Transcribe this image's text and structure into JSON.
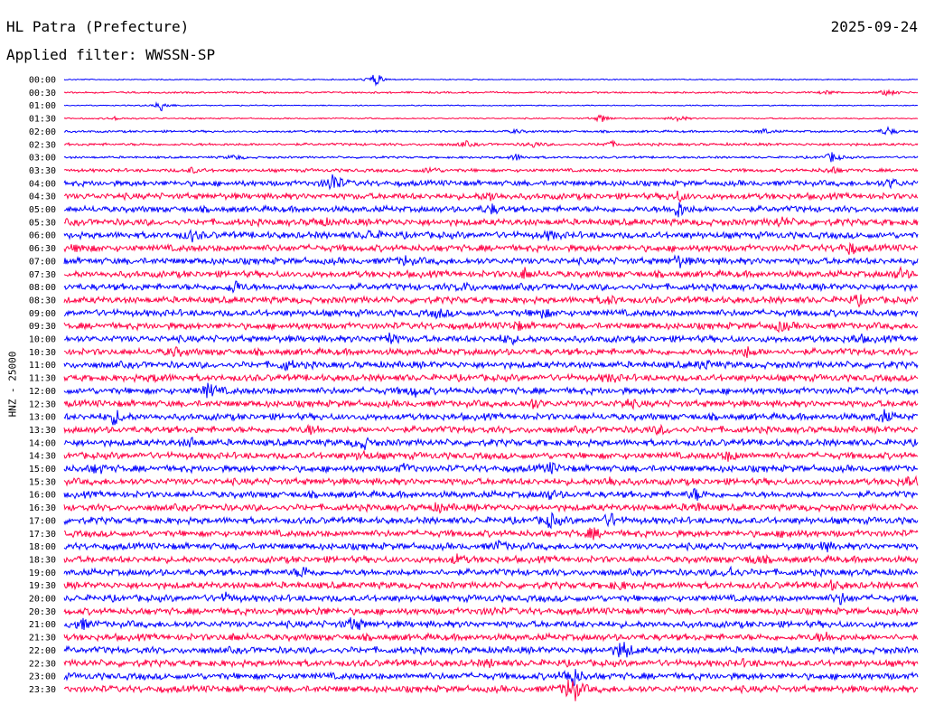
{
  "header": {
    "station": "HL Patra (Prefecture)",
    "date": "2025-09-24",
    "filter": "Applied filter: WWSSN-SP"
  },
  "channel_label": "HNZ - 25000",
  "colors": {
    "even": "#0000ff",
    "odd": "#ff0044"
  },
  "chart_data": {
    "type": "line",
    "rows": [
      {
        "label": "00:00",
        "noise": 0.5,
        "events": [
          {
            "x": 0.365,
            "amp": 8
          }
        ]
      },
      {
        "label": "00:30",
        "noise": 0.8,
        "events": [
          {
            "x": 0.965,
            "amp": 4
          },
          {
            "x": 0.895,
            "amp": 2
          }
        ]
      },
      {
        "label": "01:00",
        "noise": 0.5,
        "events": [
          {
            "x": 0.115,
            "amp": 7
          }
        ]
      },
      {
        "label": "01:30",
        "noise": 0.6,
        "events": [
          {
            "x": 0.63,
            "amp": 5
          },
          {
            "x": 0.72,
            "amp": 4
          },
          {
            "x": 0.06,
            "amp": 2
          }
        ]
      },
      {
        "label": "02:00",
        "noise": 1.0,
        "events": [
          {
            "x": 0.53,
            "amp": 2
          },
          {
            "x": 0.82,
            "amp": 3
          },
          {
            "x": 0.965,
            "amp": 5
          }
        ]
      },
      {
        "label": "02:30",
        "noise": 1.2,
        "events": [
          {
            "x": 0.47,
            "amp": 3
          },
          {
            "x": 0.55,
            "amp": 3
          },
          {
            "x": 0.64,
            "amp": 3
          }
        ]
      },
      {
        "label": "03:00",
        "noise": 1.0,
        "events": [
          {
            "x": 0.2,
            "amp": 3
          },
          {
            "x": 0.53,
            "amp": 4
          },
          {
            "x": 0.9,
            "amp": 6
          }
        ]
      },
      {
        "label": "03:30",
        "noise": 1.5,
        "events": [
          {
            "x": 0.43,
            "amp": 4
          },
          {
            "x": 0.15,
            "amp": 3
          },
          {
            "x": 0.9,
            "amp": 4
          }
        ]
      },
      {
        "label": "04:00",
        "noise": 2.5,
        "events": [
          {
            "x": 0.315,
            "amp": 12
          },
          {
            "x": 0.97,
            "amp": 5
          }
        ]
      },
      {
        "label": "04:30",
        "noise": 2.8,
        "events": [
          {
            "x": 0.5,
            "amp": 5
          },
          {
            "x": 0.72,
            "amp": 5
          }
        ]
      },
      {
        "label": "05:00",
        "noise": 2.8,
        "events": [
          {
            "x": 0.72,
            "amp": 9
          },
          {
            "x": 0.5,
            "amp": 5
          }
        ]
      },
      {
        "label": "05:30",
        "noise": 3.0,
        "events": [
          {
            "x": 0.84,
            "amp": 5
          },
          {
            "x": 0.3,
            "amp": 4
          }
        ]
      },
      {
        "label": "06:00",
        "noise": 3.0,
        "events": [
          {
            "x": 0.15,
            "amp": 5
          },
          {
            "x": 0.36,
            "amp": 5
          },
          {
            "x": 0.57,
            "amp": 4
          }
        ]
      },
      {
        "label": "06:30",
        "noise": 3.0,
        "events": [
          {
            "x": 0.92,
            "amp": 6
          },
          {
            "x": 0.02,
            "amp": 4
          }
        ]
      },
      {
        "label": "07:00",
        "noise": 3.0,
        "events": [
          {
            "x": 0.72,
            "amp": 6
          },
          {
            "x": 0.4,
            "amp": 4
          }
        ]
      },
      {
        "label": "07:30",
        "noise": 3.0,
        "events": [
          {
            "x": 0.54,
            "amp": 6
          },
          {
            "x": 0.98,
            "amp": 5
          }
        ]
      },
      {
        "label": "08:00",
        "noise": 3.0,
        "events": [
          {
            "x": 0.2,
            "amp": 7
          },
          {
            "x": 0.47,
            "amp": 4
          }
        ]
      },
      {
        "label": "08:30",
        "noise": 3.0,
        "events": [
          {
            "x": 0.64,
            "amp": 4
          },
          {
            "x": 0.93,
            "amp": 4
          }
        ]
      },
      {
        "label": "09:00",
        "noise": 3.0,
        "events": [
          {
            "x": 0.56,
            "amp": 5
          },
          {
            "x": 0.44,
            "amp": 4
          }
        ]
      },
      {
        "label": "09:30",
        "noise": 3.0,
        "events": [
          {
            "x": 0.84,
            "amp": 5
          },
          {
            "x": 0.53,
            "amp": 4
          }
        ]
      },
      {
        "label": "10:00",
        "noise": 3.0,
        "events": [
          {
            "x": 0.38,
            "amp": 6
          },
          {
            "x": 0.52,
            "amp": 5
          },
          {
            "x": 0.93,
            "amp": 4
          }
        ]
      },
      {
        "label": "10:30",
        "noise": 3.0,
        "events": [
          {
            "x": 0.8,
            "amp": 5
          },
          {
            "x": 0.13,
            "amp": 4
          }
        ]
      },
      {
        "label": "11:00",
        "noise": 3.0,
        "events": [
          {
            "x": 0.26,
            "amp": 5
          },
          {
            "x": 0.75,
            "amp": 5
          }
        ]
      },
      {
        "label": "11:30",
        "noise": 3.0,
        "events": [
          {
            "x": 0.11,
            "amp": 4
          },
          {
            "x": 0.64,
            "amp": 4
          }
        ]
      },
      {
        "label": "12:00",
        "noise": 3.0,
        "events": [
          {
            "x": 0.17,
            "amp": 8
          },
          {
            "x": 0.41,
            "amp": 5
          }
        ]
      },
      {
        "label": "12:30",
        "noise": 3.0,
        "events": [
          {
            "x": 0.55,
            "amp": 5
          },
          {
            "x": 0.66,
            "amp": 4
          }
        ]
      },
      {
        "label": "13:00",
        "noise": 3.0,
        "events": [
          {
            "x": 0.06,
            "amp": 8
          },
          {
            "x": 0.96,
            "amp": 6
          }
        ]
      },
      {
        "label": "13:30",
        "noise": 3.0,
        "events": [
          {
            "x": 0.29,
            "amp": 4
          },
          {
            "x": 0.7,
            "amp": 4
          }
        ]
      },
      {
        "label": "14:00",
        "noise": 3.0,
        "events": [
          {
            "x": 0.35,
            "amp": 6
          },
          {
            "x": 0.15,
            "amp": 4
          }
        ]
      },
      {
        "label": "14:30",
        "noise": 3.0,
        "events": [
          {
            "x": 0.78,
            "amp": 5
          },
          {
            "x": 0.35,
            "amp": 4
          }
        ]
      },
      {
        "label": "15:00",
        "noise": 3.0,
        "events": [
          {
            "x": 0.04,
            "amp": 5
          },
          {
            "x": 0.57,
            "amp": 5
          },
          {
            "x": 0.4,
            "amp": 4
          }
        ]
      },
      {
        "label": "15:30",
        "noise": 3.0,
        "events": [
          {
            "x": 0.64,
            "amp": 5
          },
          {
            "x": 0.99,
            "amp": 5
          }
        ]
      },
      {
        "label": "16:00",
        "noise": 3.0,
        "events": [
          {
            "x": 0.74,
            "amp": 6
          },
          {
            "x": 0.57,
            "amp": 4
          }
        ]
      },
      {
        "label": "16:30",
        "noise": 3.0,
        "events": [
          {
            "x": 0.44,
            "amp": 4
          },
          {
            "x": 0.74,
            "amp": 4
          }
        ]
      },
      {
        "label": "17:00",
        "noise": 3.0,
        "events": [
          {
            "x": 0.57,
            "amp": 7
          },
          {
            "x": 0.64,
            "amp": 7
          }
        ]
      },
      {
        "label": "17:30",
        "noise": 3.0,
        "events": [
          {
            "x": 0.62,
            "amp": 5
          },
          {
            "x": 0.85,
            "amp": 4
          }
        ]
      },
      {
        "label": "18:00",
        "noise": 3.0,
        "events": [
          {
            "x": 0.51,
            "amp": 5
          },
          {
            "x": 0.89,
            "amp": 5
          }
        ]
      },
      {
        "label": "18:30",
        "noise": 3.0,
        "events": [
          {
            "x": 0.46,
            "amp": 4
          },
          {
            "x": 0.81,
            "amp": 4
          }
        ]
      },
      {
        "label": "19:00",
        "noise": 3.0,
        "events": [
          {
            "x": 0.28,
            "amp": 6
          },
          {
            "x": 0.78,
            "amp": 6
          }
        ]
      },
      {
        "label": "19:30",
        "noise": 3.0,
        "events": [
          {
            "x": 0.65,
            "amp": 4
          },
          {
            "x": 0.9,
            "amp": 4
          }
        ]
      },
      {
        "label": "20:00",
        "noise": 3.0,
        "events": [
          {
            "x": 0.19,
            "amp": 4
          },
          {
            "x": 0.91,
            "amp": 5
          }
        ]
      },
      {
        "label": "20:30",
        "noise": 3.0,
        "events": [
          {
            "x": 0.5,
            "amp": 3
          },
          {
            "x": 0.3,
            "amp": 3
          }
        ]
      },
      {
        "label": "21:00",
        "noise": 3.0,
        "events": [
          {
            "x": 0.34,
            "amp": 8
          },
          {
            "x": 0.02,
            "amp": 6
          }
        ]
      },
      {
        "label": "21:30",
        "noise": 3.0,
        "events": [
          {
            "x": 0.89,
            "amp": 5
          },
          {
            "x": 0.2,
            "amp": 3
          }
        ]
      },
      {
        "label": "22:00",
        "noise": 3.0,
        "events": [
          {
            "x": 0.655,
            "amp": 11
          }
        ]
      },
      {
        "label": "22:30",
        "noise": 3.0,
        "events": [
          {
            "x": 0.5,
            "amp": 3
          },
          {
            "x": 0.8,
            "amp": 3
          }
        ]
      },
      {
        "label": "23:00",
        "noise": 3.0,
        "events": [
          {
            "x": 0.595,
            "amp": 13
          }
        ]
      },
      {
        "label": "23:30",
        "noise": 3.0,
        "events": [
          {
            "x": 0.595,
            "amp": 18
          }
        ]
      }
    ]
  }
}
